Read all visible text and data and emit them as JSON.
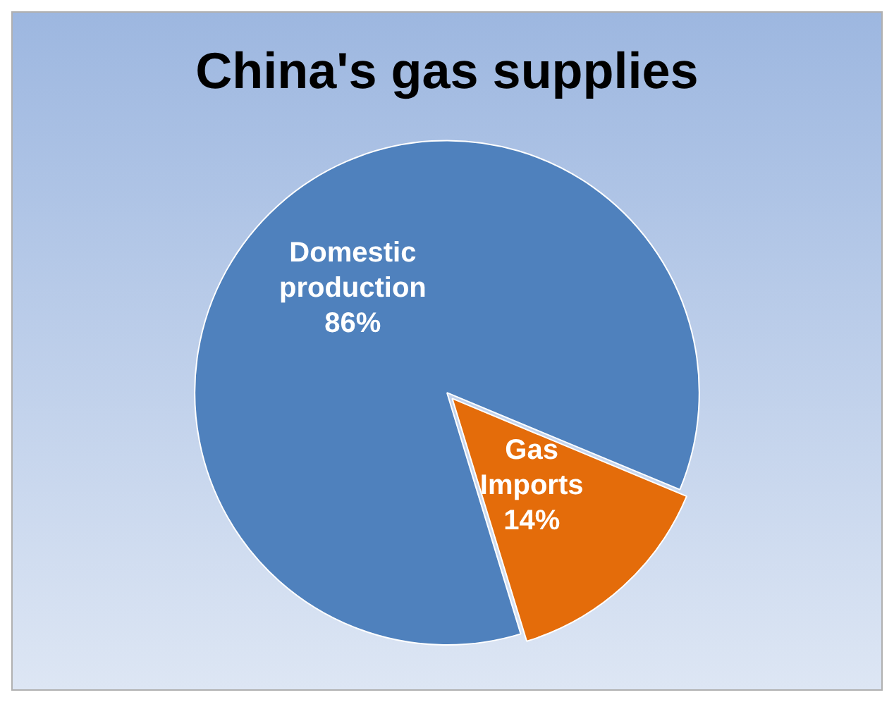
{
  "chart_data": {
    "type": "pie",
    "title": "China's gas supplies",
    "categories": [
      "Domestic production",
      "Gas Imports"
    ],
    "values": [
      86,
      14
    ],
    "colors": [
      "#4f81bd",
      "#e46c0a"
    ],
    "value_labels": [
      "86%",
      "14%"
    ],
    "legend": false
  }
}
